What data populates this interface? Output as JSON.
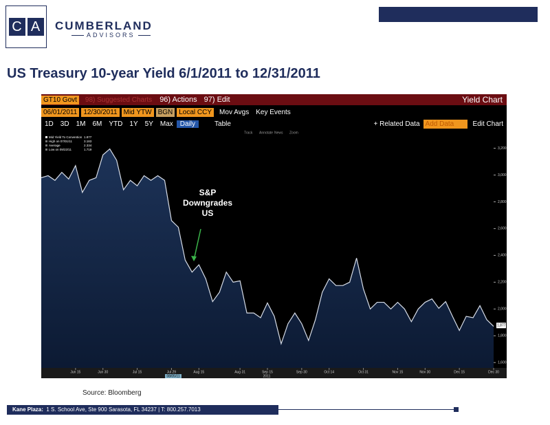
{
  "header": {
    "logo_letters": [
      "C",
      "A"
    ],
    "company": "CUMBERLAND",
    "tagline": "ADVISORS"
  },
  "title": "US Treasury 10-year Yield 6/1/2011 to 12/31/2011",
  "terminal": {
    "ticker": "GT10 Govt",
    "suggested": "98) Suggested Charts",
    "menu": [
      "96) Actions",
      "97) Edit"
    ],
    "chart_name": "Yield Chart",
    "start": "06/01/2011",
    "end": "12/30/2011",
    "field": "Mid YTW",
    "source": "BGN",
    "currency": "Local CCY",
    "toggles": [
      "Mov Avgs",
      "Key Events"
    ],
    "periods": [
      "1D",
      "3D",
      "1M",
      "6M",
      "YTD",
      "1Y",
      "5Y",
      "Max"
    ],
    "frequency": "Daily",
    "table": "Table",
    "related": "+ Related Data",
    "add_data": "Add Data",
    "edit_chart": "Edit Chart",
    "tools": [
      "Track",
      "Annotate",
      "News",
      "Zoom"
    ]
  },
  "chart_data": {
    "type": "line",
    "categories": [
      null,
      null,
      null,
      null,
      null,
      "Jun 15",
      null,
      null,
      null,
      "Jun 30",
      null,
      null,
      null,
      null,
      "Jul 15",
      null,
      null,
      null,
      null,
      "Jul 29",
      null,
      null,
      null,
      "Aug 15",
      null,
      null,
      null,
      null,
      null,
      "Aug 31",
      null,
      null,
      null,
      "Sep 15",
      null,
      null,
      null,
      null,
      "Sep 30",
      null,
      null,
      null,
      "Oct 14",
      null,
      null,
      null,
      null,
      "Oct 31",
      null,
      null,
      null,
      null,
      "Nov 15",
      null,
      null,
      null,
      "Nov 30",
      null,
      null,
      null,
      null,
      "Dec 15",
      null,
      null,
      null,
      null,
      "Dec 30"
    ],
    "series": [
      {
        "name": "Mid Yield To Convention",
        "color": "#d7dde8",
        "values": [
          2980,
          2995,
          2960,
          3020,
          2970,
          3070,
          2870,
          2960,
          2980,
          3150,
          3195,
          3110,
          2890,
          2960,
          2920,
          2995,
          2960,
          2995,
          2960,
          2660,
          2610,
          2365,
          2275,
          2330,
          2225,
          2055,
          2125,
          2275,
          2200,
          2210,
          1970,
          1970,
          1935,
          2045,
          1945,
          1740,
          1890,
          1970,
          1890,
          1765,
          1920,
          2125,
          2225,
          2175,
          2175,
          2200,
          2380,
          2150,
          2000,
          2050,
          2050,
          2000,
          2050,
          2000,
          1905,
          2000,
          2050,
          2075,
          2005,
          2055,
          1945,
          1840,
          1945,
          1935,
          2025,
          1920,
          1870
        ]
      }
    ],
    "legend_stats": [
      {
        "label": "Mid Yield To Convention",
        "value": "1.877"
      },
      {
        "label": "High on 07/01/11",
        "value": "3.183"
      },
      {
        "label": "Average",
        "value": "2.334"
      },
      {
        "label": "Low on 09/22/11",
        "value": "1.719"
      }
    ],
    "last_value": {
      "value": 1877,
      "label": "1,877"
    },
    "annotation": [
      "S&P",
      "Downgrades",
      "US"
    ],
    "highlight_date": "08/05/11",
    "year": "2011",
    "ylim": [
      1560,
      3290
    ],
    "yticks": [
      {
        "value": 1600,
        "label": "1,600"
      },
      {
        "value": 1800,
        "label": "1,800"
      },
      {
        "value": 2000,
        "label": "2,000"
      },
      {
        "value": 2200,
        "label": "2,200"
      },
      {
        "value": 2400,
        "label": "2,400"
      },
      {
        "value": 2600,
        "label": "2,600"
      },
      {
        "value": 2800,
        "label": "2,800"
      },
      {
        "value": 3000,
        "label": "3,000"
      },
      {
        "value": 3200,
        "label": "3,200"
      }
    ]
  },
  "source": "Source: Bloomberg",
  "footer": {
    "place": "Kane Plaza:",
    "address": "1 S. School Ave, Ste 900  Sarasota, FL 34237   |   T: 800.257.7013"
  }
}
